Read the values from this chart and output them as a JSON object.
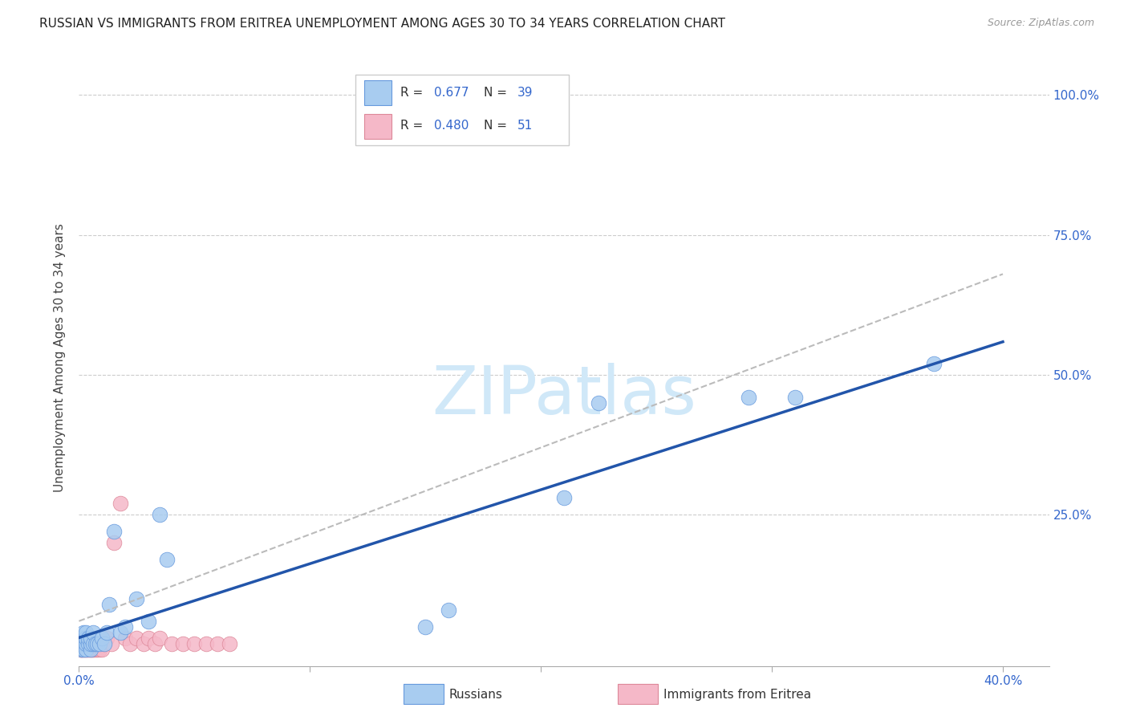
{
  "title": "RUSSIAN VS IMMIGRANTS FROM ERITREA UNEMPLOYMENT AMONG AGES 30 TO 34 YEARS CORRELATION CHART",
  "source": "Source: ZipAtlas.com",
  "ylabel": "Unemployment Among Ages 30 to 34 years",
  "xlim": [
    0.0,
    0.42
  ],
  "ylim": [
    -0.02,
    1.08
  ],
  "legend_blue_R": "0.677",
  "legend_blue_N": "39",
  "legend_pink_R": "0.480",
  "legend_pink_N": "51",
  "blue_color": "#A8CCF0",
  "blue_edge": "#6699DD",
  "pink_color": "#F5B8C8",
  "pink_edge": "#DD8899",
  "trendline_blue_color": "#2255AA",
  "trendline_pink_color": "#BBBBBB",
  "background_color": "#FFFFFF",
  "russians_x": [
    0.001,
    0.001,
    0.001,
    0.002,
    0.002,
    0.002,
    0.002,
    0.003,
    0.003,
    0.003,
    0.003,
    0.004,
    0.004,
    0.005,
    0.005,
    0.005,
    0.006,
    0.006,
    0.007,
    0.008,
    0.009,
    0.01,
    0.011,
    0.012,
    0.013,
    0.015,
    0.018,
    0.02,
    0.025,
    0.03,
    0.035,
    0.038,
    0.15,
    0.16,
    0.21,
    0.225,
    0.29,
    0.31,
    0.37
  ],
  "russians_y": [
    0.01,
    0.02,
    0.03,
    0.01,
    0.02,
    0.03,
    0.04,
    0.01,
    0.02,
    0.03,
    0.04,
    0.02,
    0.03,
    0.01,
    0.02,
    0.03,
    0.02,
    0.04,
    0.02,
    0.02,
    0.02,
    0.03,
    0.02,
    0.04,
    0.09,
    0.22,
    0.04,
    0.05,
    0.1,
    0.06,
    0.25,
    0.17,
    0.05,
    0.08,
    0.28,
    0.45,
    0.46,
    0.46,
    0.52
  ],
  "eritrean_x": [
    0.001,
    0.001,
    0.001,
    0.001,
    0.001,
    0.002,
    0.002,
    0.002,
    0.002,
    0.002,
    0.003,
    0.003,
    0.003,
    0.003,
    0.004,
    0.004,
    0.004,
    0.004,
    0.005,
    0.005,
    0.005,
    0.005,
    0.006,
    0.006,
    0.006,
    0.007,
    0.007,
    0.008,
    0.008,
    0.009,
    0.009,
    0.01,
    0.01,
    0.011,
    0.012,
    0.014,
    0.015,
    0.018,
    0.02,
    0.022,
    0.025,
    0.028,
    0.03,
    0.033,
    0.035,
    0.04,
    0.045,
    0.05,
    0.055,
    0.06,
    0.065
  ],
  "eritrean_y": [
    0.01,
    0.02,
    0.01,
    0.02,
    0.01,
    0.02,
    0.01,
    0.02,
    0.01,
    0.02,
    0.01,
    0.02,
    0.01,
    0.02,
    0.01,
    0.02,
    0.01,
    0.02,
    0.01,
    0.02,
    0.01,
    0.02,
    0.01,
    0.02,
    0.01,
    0.02,
    0.01,
    0.02,
    0.01,
    0.02,
    0.01,
    0.02,
    0.01,
    0.02,
    0.03,
    0.02,
    0.2,
    0.27,
    0.03,
    0.02,
    0.03,
    0.02,
    0.03,
    0.02,
    0.03,
    0.02,
    0.02,
    0.02,
    0.02,
    0.02,
    0.02
  ],
  "blue_trendline_x": [
    0.0,
    0.4
  ],
  "blue_trendline_y": [
    0.0,
    0.52
  ],
  "pink_trendline_x": [
    0.0,
    0.4
  ],
  "pink_trendline_y": [
    0.06,
    0.68
  ],
  "watermark_text": "ZIPatlas",
  "watermark_color": "#D0E8F8",
  "watermark_fontsize": 60,
  "title_fontsize": 11,
  "source_fontsize": 9,
  "axis_label_fontsize": 11,
  "tick_label_fontsize": 11,
  "tick_color": "#3366CC",
  "ylabel_color": "#444444"
}
